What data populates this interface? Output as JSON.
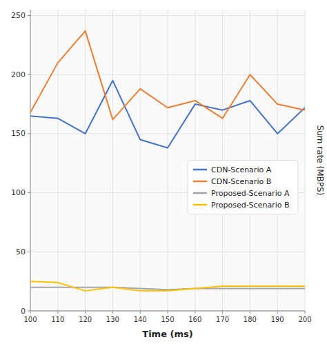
{
  "chart_data": {
    "type": "line",
    "xlabel": "Time (ms)",
    "ylabel": "Sum rate (MBPS)",
    "x": [
      100,
      110,
      120,
      130,
      140,
      150,
      160,
      170,
      180,
      190,
      200
    ],
    "series": [
      {
        "name": "CDN-Scenario A",
        "color": "#4472C4",
        "values": [
          165,
          163,
          150,
          195,
          145,
          138,
          175,
          170,
          178,
          150,
          172
        ]
      },
      {
        "name": "CDN-Scenario B",
        "color": "#ED7D31",
        "values": [
          168,
          210,
          237,
          162,
          188,
          172,
          178,
          163,
          200,
          175,
          170
        ]
      },
      {
        "name": "Proposed-Scenario A",
        "color": "#A5A5A5",
        "values": [
          20,
          20,
          20,
          20,
          19,
          18,
          19,
          19,
          19,
          19,
          19
        ]
      },
      {
        "name": "Proposed-Scenario B",
        "color": "#FFC000",
        "values": [
          25,
          24,
          17,
          20,
          17,
          17,
          19,
          21,
          21,
          21,
          21
        ]
      }
    ],
    "xlim": [
      100,
      200
    ],
    "ylim": [
      0,
      255
    ],
    "xticks": [
      100,
      110,
      120,
      130,
      140,
      150,
      160,
      170,
      180,
      190,
      200
    ],
    "yticks": [
      0,
      50,
      100,
      150,
      200,
      250
    ],
    "grid": true,
    "legend": "center right"
  }
}
